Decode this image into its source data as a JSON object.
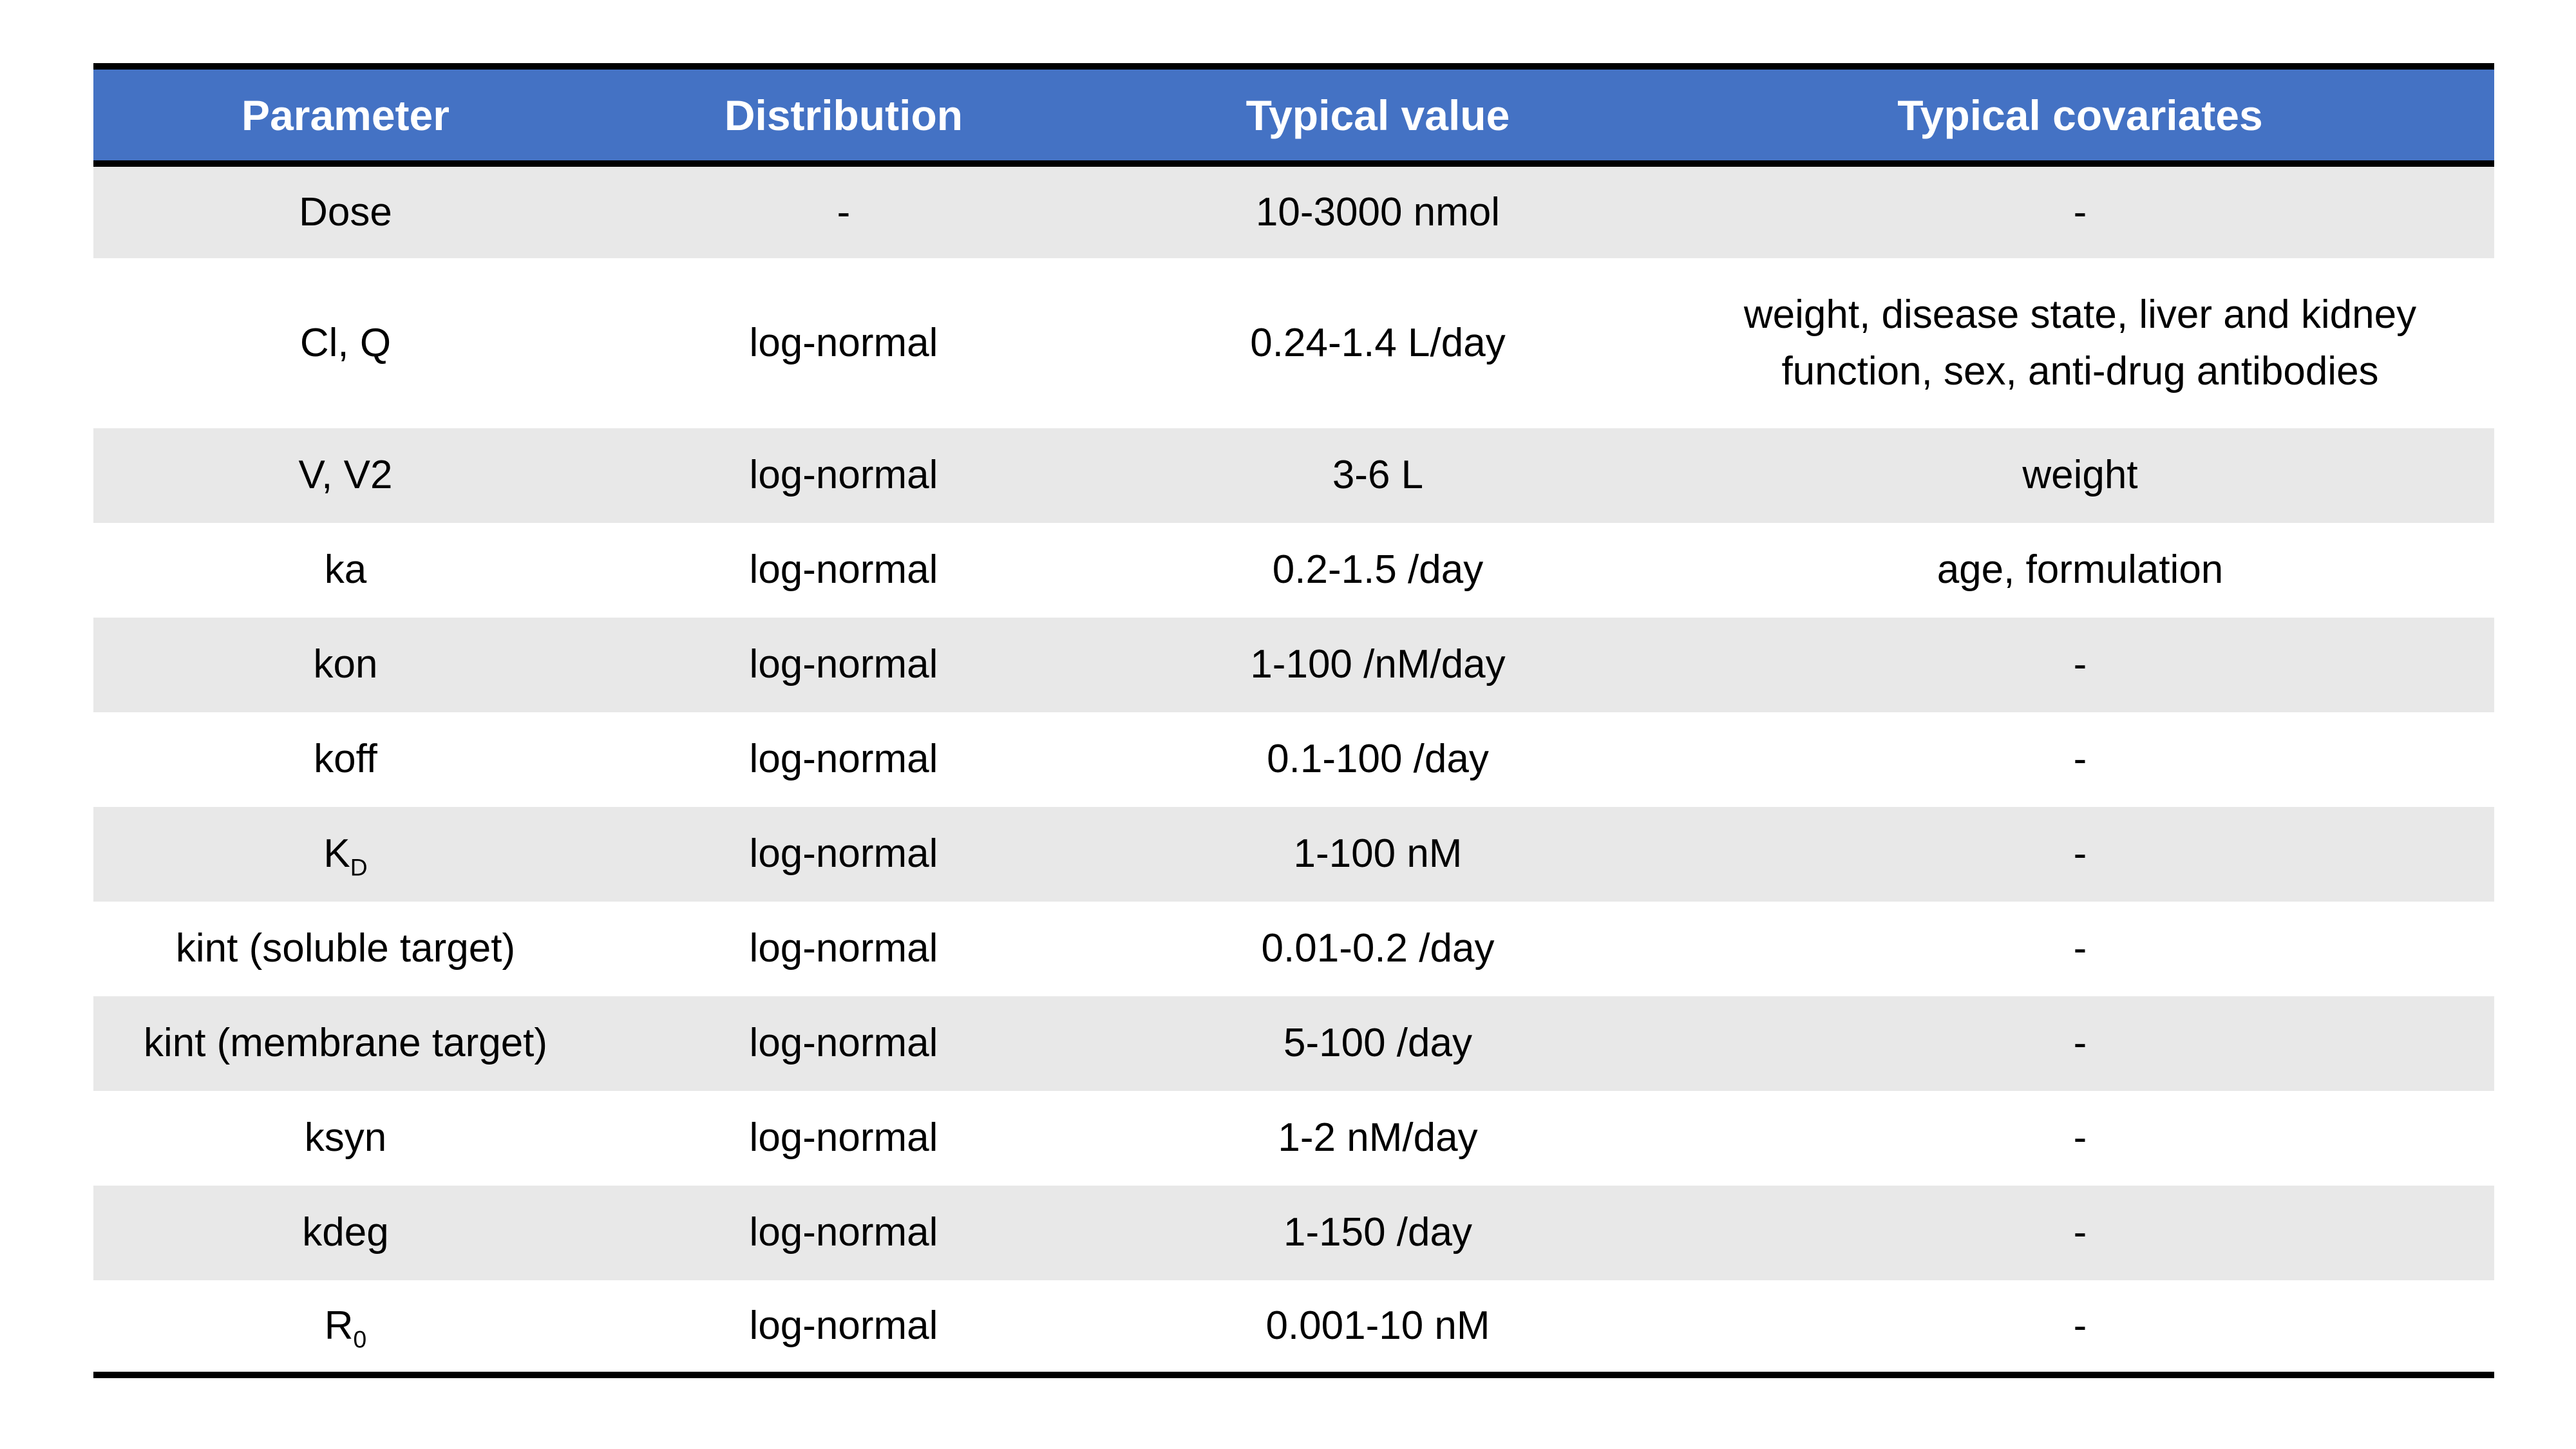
{
  "table": {
    "columns": [
      "Parameter",
      "Distribution",
      "Typical value",
      "Typical covariates"
    ],
    "rows": [
      {
        "parameter": "Dose",
        "parameter_sub": "",
        "distribution": "-",
        "typical_value": "10-3000 nmol",
        "typical_covariates": "-"
      },
      {
        "parameter": "Cl, Q",
        "parameter_sub": "",
        "distribution": "log-normal",
        "typical_value": "0.24-1.4 L/day",
        "typical_covariates": "weight, disease state, liver and kidney function, sex, anti-drug antibodies"
      },
      {
        "parameter": "V, V2",
        "parameter_sub": "",
        "distribution": "log-normal",
        "typical_value": "3-6 L",
        "typical_covariates": "weight"
      },
      {
        "parameter": "ka",
        "parameter_sub": "",
        "distribution": "log-normal",
        "typical_value": "0.2-1.5 /day",
        "typical_covariates": "age, formulation"
      },
      {
        "parameter": "kon",
        "parameter_sub": "",
        "distribution": "log-normal",
        "typical_value": "1-100 /nM/day",
        "typical_covariates": "-"
      },
      {
        "parameter": "koff",
        "parameter_sub": "",
        "distribution": "log-normal",
        "typical_value": "0.1-100 /day",
        "typical_covariates": "-"
      },
      {
        "parameter": "K",
        "parameter_sub": "D",
        "distribution": "log-normal",
        "typical_value": "1-100 nM",
        "typical_covariates": "-"
      },
      {
        "parameter": "kint (soluble target)",
        "parameter_sub": "",
        "distribution": "log-normal",
        "typical_value": "0.01-0.2 /day",
        "typical_covariates": "-"
      },
      {
        "parameter": "kint (membrane target)",
        "parameter_sub": "",
        "distribution": "log-normal",
        "typical_value": "5-100 /day",
        "typical_covariates": "-"
      },
      {
        "parameter": "ksyn",
        "parameter_sub": "",
        "distribution": "log-normal",
        "typical_value": "1-2 nM/day",
        "typical_covariates": "-"
      },
      {
        "parameter": "kdeg",
        "parameter_sub": "",
        "distribution": "log-normal",
        "typical_value": "1-150 /day",
        "typical_covariates": "-"
      },
      {
        "parameter": "R",
        "parameter_sub": "0",
        "distribution": "log-normal",
        "typical_value": "0.001-10 nM",
        "typical_covariates": "-"
      }
    ],
    "style": {
      "header_bg": "#4472C4",
      "header_text": "#FFFFFF",
      "band_bg": "#E8E8E8",
      "border_color": "#000000"
    }
  }
}
